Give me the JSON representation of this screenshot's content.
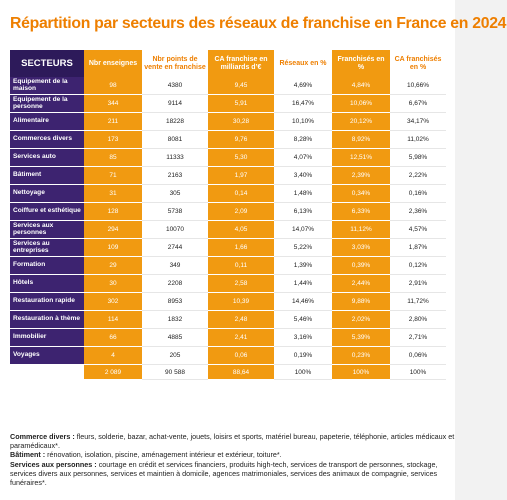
{
  "title": "Répartition par secteurs des réseaux de franchise en France en 2024",
  "headers": [
    "SECTEURS",
    "Nbr enseignes",
    "Nbr points de vente en franchise",
    "CA franchise en milliards d’€",
    "Réseaux en %",
    "Franchisés en %",
    "CA franchisés en %"
  ],
  "rows": [
    {
      "sector": "Equipement de la maison",
      "c1": "98",
      "c2": "4380",
      "c3": "9,45",
      "c4": "4,69%",
      "c5": "4,84%",
      "c6": "10,66%"
    },
    {
      "sector": "Equipement de la personne",
      "c1": "344",
      "c2": "9114",
      "c3": "5,91",
      "c4": "16,47%",
      "c5": "10,06%",
      "c6": "6,67%"
    },
    {
      "sector": "Alimentaire",
      "c1": "211",
      "c2": "18228",
      "c3": "30,28",
      "c4": "10,10%",
      "c5": "20,12%",
      "c6": "34,17%"
    },
    {
      "sector": "Commerces divers",
      "c1": "173",
      "c2": "8081",
      "c3": "9,76",
      "c4": "8,28%",
      "c5": "8,92%",
      "c6": "11,02%"
    },
    {
      "sector": "Services auto",
      "c1": "85",
      "c2": "11333",
      "c3": "5,30",
      "c4": "4,07%",
      "c5": "12,51%",
      "c6": "5,98%"
    },
    {
      "sector": "Bâtiment",
      "c1": "71",
      "c2": "2163",
      "c3": "1,97",
      "c4": "3,40%",
      "c5": "2,39%",
      "c6": "2,22%"
    },
    {
      "sector": "Nettoyage",
      "c1": "31",
      "c2": "305",
      "c3": "0,14",
      "c4": "1,48%",
      "c5": "0,34%",
      "c6": "0,16%"
    },
    {
      "sector": "Coiffure et esthétique",
      "c1": "128",
      "c2": "5738",
      "c3": "2,09",
      "c4": "6,13%",
      "c5": "6,33%",
      "c6": "2,36%"
    },
    {
      "sector": "Services aux personnes",
      "c1": "294",
      "c2": "10070",
      "c3": "4,05",
      "c4": "14,07%",
      "c5": "11,12%",
      "c6": "4,57%"
    },
    {
      "sector": "Services au entreprises",
      "c1": "109",
      "c2": "2744",
      "c3": "1,66",
      "c4": "5,22%",
      "c5": "3,03%",
      "c6": "1,87%"
    },
    {
      "sector": "Formation",
      "c1": "29",
      "c2": "349",
      "c3": "0,11",
      "c4": "1,39%",
      "c5": "0,39%",
      "c6": "0,12%"
    },
    {
      "sector": "Hôtels",
      "c1": "30",
      "c2": "2208",
      "c3": "2,58",
      "c4": "1,44%",
      "c5": "2,44%",
      "c6": "2,91%"
    },
    {
      "sector": "Restauration rapide",
      "c1": "302",
      "c2": "8953",
      "c3": "10,39",
      "c4": "14,46%",
      "c5": "9,88%",
      "c6": "11,72%"
    },
    {
      "sector": "Restauration à thème",
      "c1": "114",
      "c2": "1832",
      "c3": "2,48",
      "c4": "5,46%",
      "c5": "2,02%",
      "c6": "2,80%"
    },
    {
      "sector": "Immobilier",
      "c1": "66",
      "c2": "4885",
      "c3": "2,41",
      "c4": "3,16%",
      "c5": "5,39%",
      "c6": "2,71%"
    },
    {
      "sector": "Voyages",
      "c1": "4",
      "c2": "205",
      "c3": "0,06",
      "c4": "0,19%",
      "c5": "0,23%",
      "c6": "0,06%"
    }
  ],
  "total": {
    "sector": "",
    "c1": "2 089",
    "c2": "90 588",
    "c3": "88,64",
    "c4": "100%",
    "c5": "100%",
    "c6": "100%"
  },
  "notes": [
    {
      "label": "Commerce divers :",
      "text": " fleurs, solderie, bazar, achat-vente, jouets, loisirs et sports, matériel bureau, papeterie, téléphonie, articles médicaux et paramédicaux*."
    },
    {
      "label": "Bâtiment :",
      "text": " rénovation, isolation, piscine, aménagement intérieur et extérieur, toiture*."
    },
    {
      "label": "Services aux personnes :",
      "text": " courtage en crédit et services financiers, produits high-tech, services de transport de personnes, stockage, services divers aux personnes, services et maintien à domicile, agences matrimoniales, services des animaux de compagnie, services funéraires*."
    }
  ],
  "colors": {
    "title": "#ee7f00",
    "header_dark": "#2d1a5a",
    "sector_cell": "#3d2370",
    "orange": "#f19a11"
  }
}
